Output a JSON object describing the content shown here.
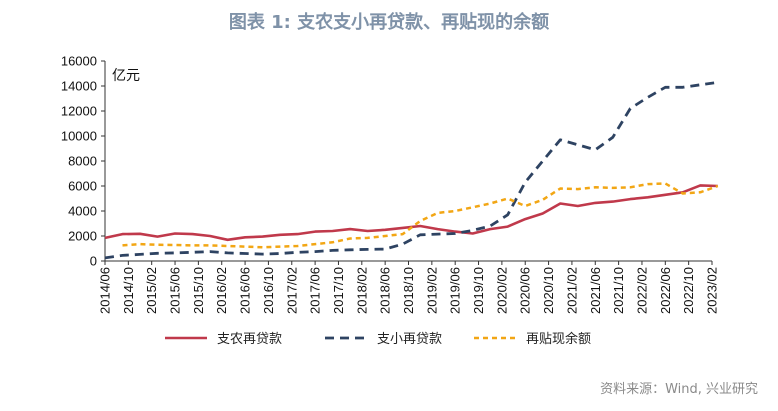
{
  "chart_data": {
    "type": "line",
    "title": "图表 1:  支农支小再贷款、再贴现的余额",
    "unit_label": "亿元",
    "ylim": [
      0,
      16000
    ],
    "yticks": [
      0,
      2000,
      4000,
      6000,
      8000,
      10000,
      12000,
      14000,
      16000
    ],
    "x_tick_labels": [
      "2014/06",
      "2014/10",
      "2015/02",
      "2015/06",
      "2015/10",
      "2016/02",
      "2016/06",
      "2016/10",
      "2017/02",
      "2017/06",
      "2017/10",
      "2018/02",
      "2018/06",
      "2018/10",
      "2019/02",
      "2019/06",
      "2019/10",
      "2020/02",
      "2020/06",
      "2020/10",
      "2021/02",
      "2021/06",
      "2021/10",
      "2022/02",
      "2022/06",
      "2022/10",
      "2023/02"
    ],
    "x": [
      "2014/06",
      "2014/09",
      "2014/12",
      "2015/03",
      "2015/06",
      "2015/09",
      "2015/12",
      "2016/03",
      "2016/06",
      "2016/09",
      "2016/12",
      "2017/03",
      "2017/06",
      "2017/09",
      "2017/12",
      "2018/03",
      "2018/06",
      "2018/09",
      "2018/12",
      "2019/03",
      "2019/06",
      "2019/09",
      "2019/12",
      "2020/03",
      "2020/06",
      "2020/09",
      "2020/12",
      "2021/03",
      "2021/06",
      "2021/09",
      "2021/12",
      "2022/03",
      "2022/06",
      "2022/09",
      "2022/12",
      "2023/03"
    ],
    "series": [
      {
        "name": "支农再贷款",
        "color": "#c0394b",
        "style": "solid",
        "values": [
          1850,
          2150,
          2180,
          1950,
          2200,
          2150,
          2000,
          1700,
          1900,
          1950,
          2100,
          2150,
          2350,
          2400,
          2550,
          2400,
          2500,
          2650,
          2800,
          2550,
          2350,
          2200,
          2550,
          2750,
          3350,
          3800,
          4600,
          4400,
          4650,
          4750,
          4950,
          5100,
          5300,
          5500,
          6050,
          6000
        ]
      },
      {
        "name": "支小再贷款",
        "color": "#2e4362",
        "style": "dashed",
        "values": [
          250,
          450,
          530,
          620,
          650,
          700,
          750,
          650,
          600,
          550,
          600,
          700,
          750,
          850,
          900,
          930,
          950,
          1350,
          2100,
          2150,
          2200,
          2450,
          2800,
          3700,
          6300,
          8000,
          9700,
          9300,
          8900,
          9900,
          12200,
          13100,
          13900,
          13900,
          14100,
          14300
        ]
      },
      {
        "name": "再贴现余额",
        "color": "#f2a614",
        "style": "dashed",
        "values": [
          null,
          1250,
          1350,
          1300,
          1280,
          1250,
          1250,
          1200,
          1150,
          1100,
          1150,
          1200,
          1350,
          1500,
          1800,
          1850,
          2000,
          2150,
          3200,
          3850,
          4000,
          4300,
          4600,
          5000,
          4400,
          4900,
          5800,
          5750,
          5900,
          5850,
          5900,
          6150,
          6200,
          5400,
          5500,
          6000
        ]
      }
    ]
  },
  "source": "资料来源：Wind, 兴业研究"
}
